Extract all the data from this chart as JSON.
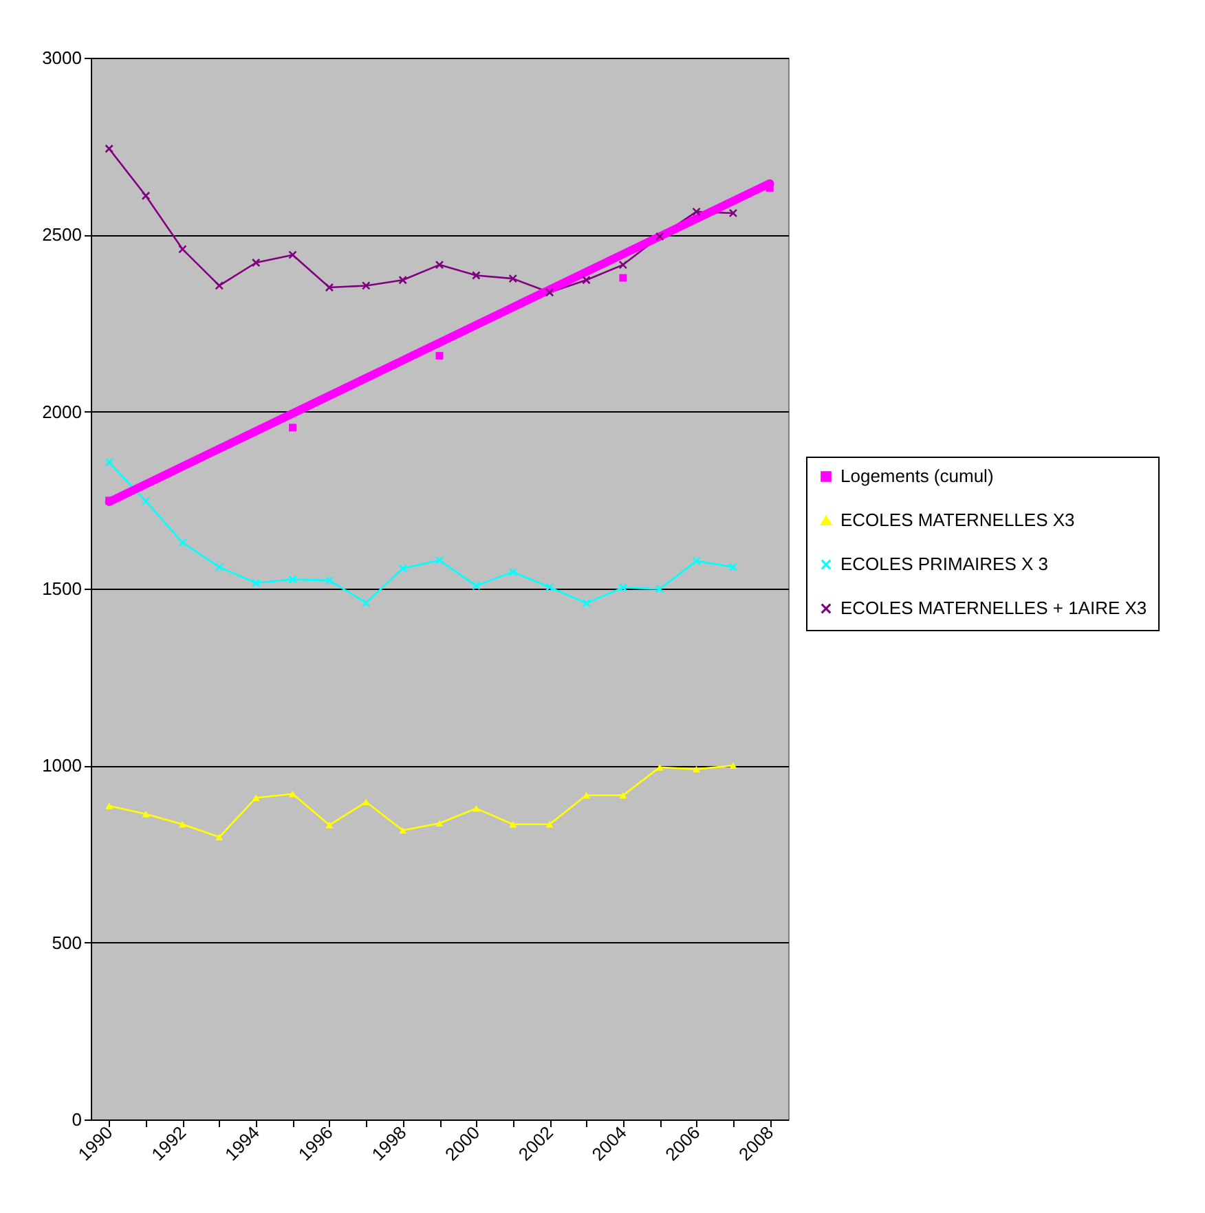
{
  "chart_data": {
    "type": "line",
    "categories": [
      "1990",
      null,
      "1992",
      null,
      "1994",
      null,
      "1996",
      null,
      "1998",
      null,
      "2000",
      null,
      "2002",
      null,
      "2004",
      null,
      "2006",
      null,
      "2008"
    ],
    "ylim": [
      0,
      3000
    ],
    "yticks": [
      0,
      500,
      1000,
      1500,
      2000,
      2500,
      3000
    ],
    "grid": "y",
    "legend": "right",
    "series": [
      {
        "name": "Logements (cumul)",
        "type": "scatter",
        "marker": "square",
        "color": "#ff00ff",
        "values": [
          1749,
          null,
          null,
          null,
          null,
          1955,
          null,
          null,
          null,
          2158,
          null,
          null,
          null,
          null,
          2378,
          null,
          null,
          null,
          2632
        ]
      },
      {
        "name": "ECOLES MATERNELLES X3",
        "marker": "triangle",
        "color": "#ffff00",
        "values": [
          886,
          863,
          834,
          798,
          909,
          920,
          832,
          897,
          817,
          837,
          879,
          834,
          834,
          916,
          916,
          995,
          990,
          1000,
          null
        ]
      },
      {
        "name": "ECOLES PRIMAIRES X 3",
        "marker": "cross",
        "color": "#00ffff",
        "values": [
          1857,
          1747,
          1630,
          1561,
          1516,
          1526,
          1523,
          1460,
          1557,
          1580,
          1508,
          1547,
          1504,
          1459,
          1503,
          1499,
          1578,
          1561,
          null
        ]
      },
      {
        "name": "ECOLES MATERNELLES + 1AIRE X3",
        "marker": "cross",
        "color": "#800080",
        "values": [
          2743,
          2610,
          2459,
          2356,
          2421,
          2443,
          2351,
          2356,
          2372,
          2415,
          2385,
          2376,
          2337,
          2372,
          2415,
          2495,
          2565,
          2561,
          null
        ]
      },
      {
        "marker": "none",
        "color": "#ff00ff",
        "values": [
          1745,
          1795,
          1845,
          1895,
          1945,
          1995,
          2045,
          2095,
          2145,
          2195,
          2245,
          2295,
          2345,
          2395,
          2445,
          2495,
          2545,
          2595,
          2645
        ]
      }
    ]
  }
}
